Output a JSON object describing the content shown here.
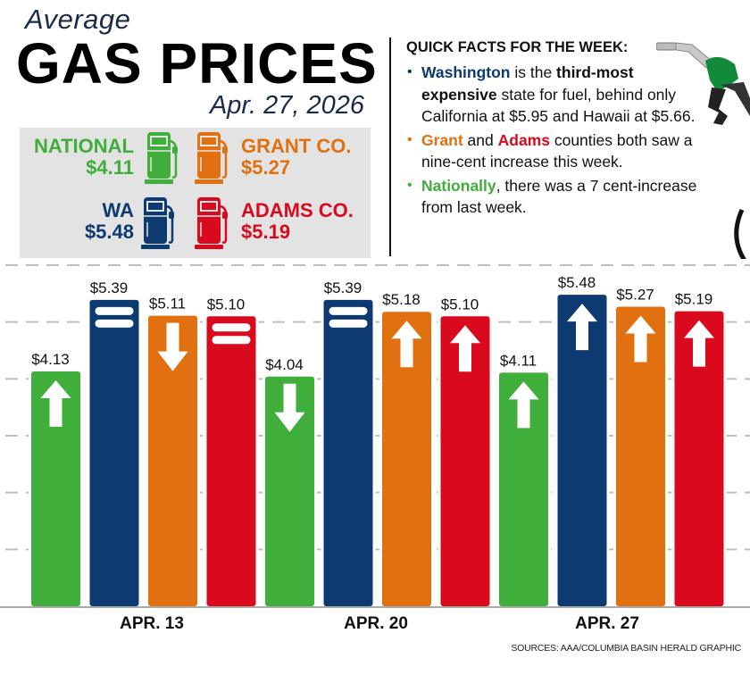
{
  "header": {
    "kicker": "Average",
    "title": "GAS PRICES",
    "date": "Apr. 27, 2026"
  },
  "legend": [
    {
      "label": "NATIONAL",
      "price": "$4.11",
      "color": "#3fae3a",
      "icon": "gas-pump-icon"
    },
    {
      "label": "GRANT CO.",
      "price": "$5.27",
      "color": "#e07010",
      "icon": "gas-pump-icon"
    },
    {
      "label": "WA",
      "price": "$5.48",
      "color": "#0d3a70",
      "icon": "gas-pump-icon"
    },
    {
      "label": "ADAMS CO.",
      "price": "$5.19",
      "color": "#d90a1e",
      "icon": "gas-pump-icon"
    }
  ],
  "facts": {
    "heading": "QUICK FACTS FOR THE WEEK:",
    "items": [
      {
        "color": "#0d3a70",
        "parts": [
          {
            "text": "Washington",
            "bold": true,
            "color": "#0d3a70"
          },
          {
            "text": " is the "
          },
          {
            "text": "third-most expensive",
            "bold": true
          },
          {
            "text": " state for fuel, behind only California at $5.95 and Hawaii at $5.66."
          }
        ]
      },
      {
        "color": "#e07010",
        "parts": [
          {
            "text": "Grant",
            "bold": true,
            "color": "#e07010"
          },
          {
            "text": " and "
          },
          {
            "text": "Adams",
            "bold": true,
            "color": "#d90a1e"
          },
          {
            "text": " counties both saw a nine-cent increase this week."
          }
        ]
      },
      {
        "color": "#3fae3a",
        "parts": [
          {
            "text": "Nationally",
            "bold": true,
            "color": "#3fae3a"
          },
          {
            "text": ", there was a 7 cent-increase from last week."
          }
        ]
      }
    ]
  },
  "chart_data": {
    "type": "bar",
    "categories": [
      "APR. 13",
      "APR. 20",
      "APR. 27"
    ],
    "ylim": [
      0,
      6
    ],
    "grid": true,
    "series_colors": {
      "National": "#3fae3a",
      "WA": "#0d3a70",
      "Grant Co.": "#e07010",
      "Adams Co.": "#d90a1e"
    },
    "bars": [
      {
        "series": "National",
        "value": 4.13,
        "label": "$4.13",
        "trend": "up"
      },
      {
        "series": "WA",
        "value": 5.39,
        "label": "$5.39",
        "trend": "equal"
      },
      {
        "series": "Grant Co.",
        "value": 5.11,
        "label": "$5.11",
        "trend": "down"
      },
      {
        "series": "Adams Co.",
        "value": 5.1,
        "label": "$5.10",
        "trend": "equal"
      },
      {
        "series": "National",
        "value": 4.04,
        "label": "$4.04",
        "trend": "down"
      },
      {
        "series": "WA",
        "value": 5.39,
        "label": "$5.39",
        "trend": "equal"
      },
      {
        "series": "Grant Co.",
        "value": 5.18,
        "label": "$5.18",
        "trend": "up"
      },
      {
        "series": "Adams Co.",
        "value": 5.1,
        "label": "$5.10",
        "trend": "up"
      },
      {
        "series": "National",
        "value": 4.11,
        "label": "$4.11",
        "trend": "up"
      },
      {
        "series": "WA",
        "value": 5.48,
        "label": "$5.48",
        "trend": "up"
      },
      {
        "series": "Grant Co.",
        "value": 5.27,
        "label": "$5.27",
        "trend": "up"
      },
      {
        "series": "Adams Co.",
        "value": 5.19,
        "label": "$5.19",
        "trend": "up"
      }
    ]
  },
  "source": "SOURCES: AAA/COLUMBIA BASIN HERALD GRAPHIC",
  "decor": {
    "nozzle_icon": "fuel-nozzle-icon"
  }
}
